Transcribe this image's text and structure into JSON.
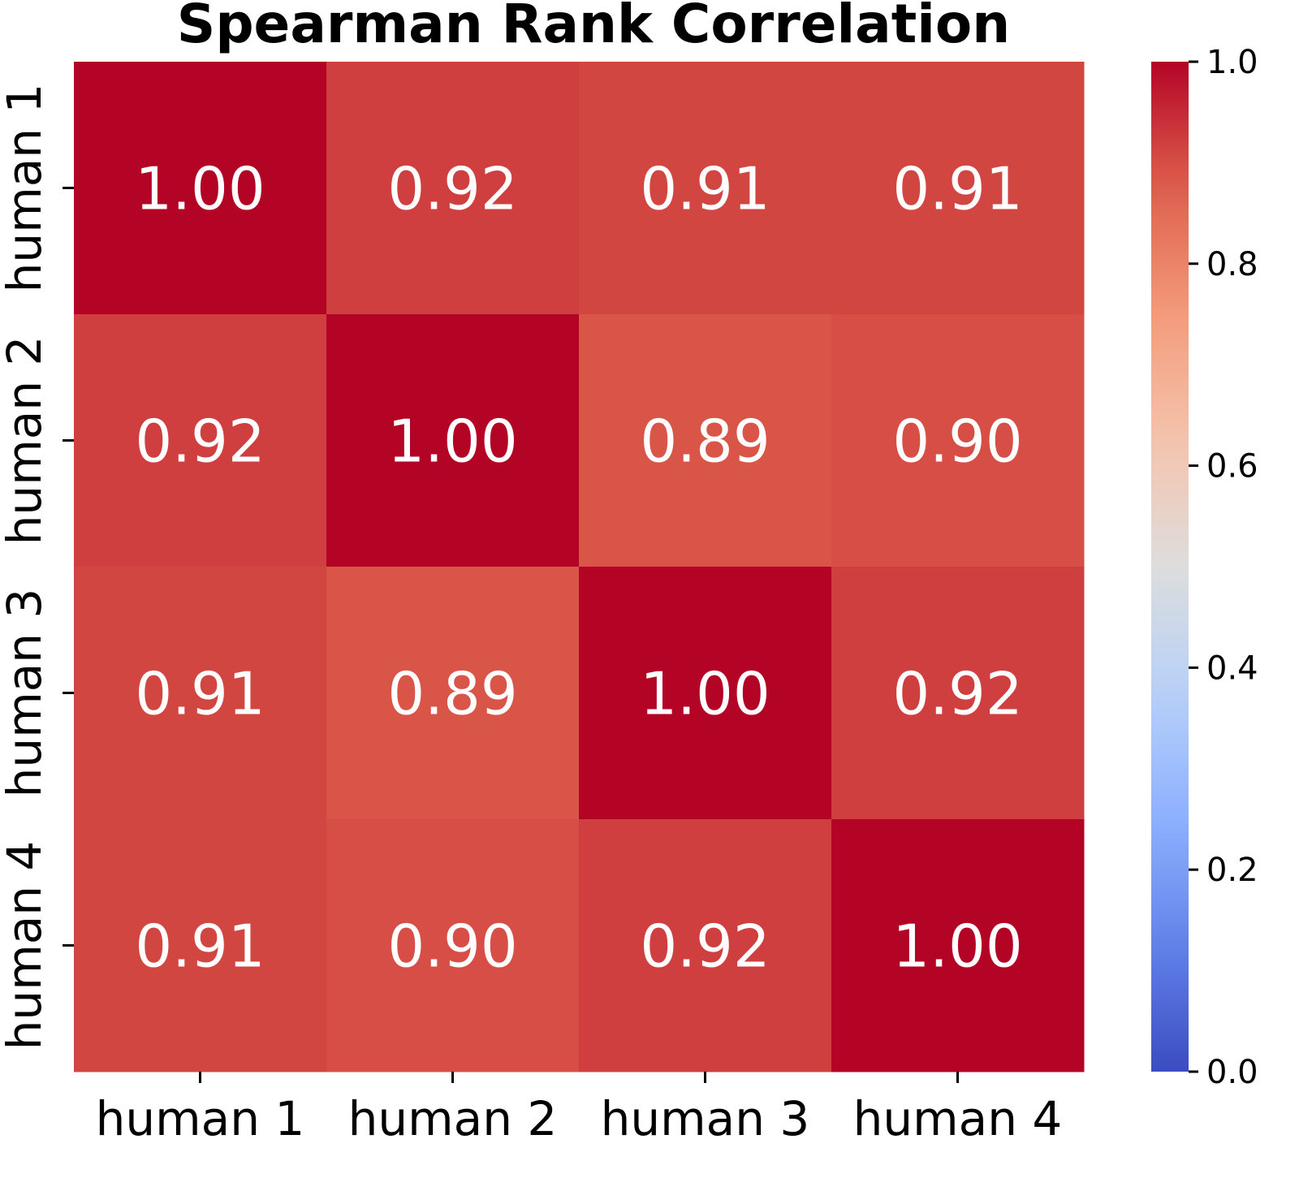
{
  "chart_data": {
    "type": "heatmap",
    "title": "Spearman Rank Correlation",
    "x_categories": [
      "human 1",
      "human 2",
      "human 3",
      "human 4"
    ],
    "y_categories": [
      "human 1",
      "human 2",
      "human 3",
      "human 4"
    ],
    "values": [
      [
        1.0,
        0.92,
        0.91,
        0.91
      ],
      [
        0.92,
        1.0,
        0.89,
        0.9
      ],
      [
        0.91,
        0.89,
        1.0,
        0.92
      ],
      [
        0.91,
        0.9,
        0.92,
        1.0
      ]
    ],
    "value_labels": [
      [
        "1.00",
        "0.92",
        "0.91",
        "0.91"
      ],
      [
        "0.92",
        "1.00",
        "0.89",
        "0.90"
      ],
      [
        "0.91",
        "0.89",
        "1.00",
        "0.92"
      ],
      [
        "0.91",
        "0.90",
        "0.92",
        "1.00"
      ]
    ],
    "colormap": "coolwarm",
    "vmin": 0.0,
    "vmax": 1.0,
    "colorbar_ticks": [
      0.0,
      0.2,
      0.4,
      0.6,
      0.8,
      1.0
    ],
    "colorbar_tick_labels": [
      "0.0",
      "0.2",
      "0.4",
      "0.6",
      "0.8",
      "1.0"
    ],
    "cell_text_color": "#ffffff"
  }
}
